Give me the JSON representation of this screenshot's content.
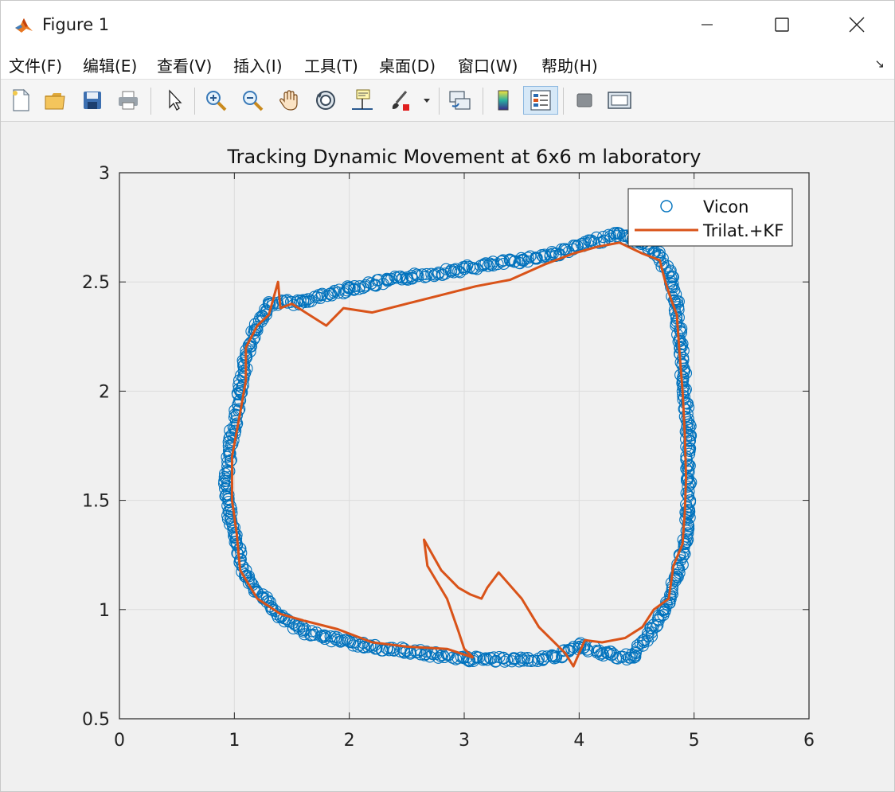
{
  "window": {
    "title": "Figure 1",
    "minimize_label": "—",
    "maximize_label": "☐",
    "close_label": "✕"
  },
  "menu": {
    "items": [
      "文件(F)",
      "编辑(E)",
      "查看(V)",
      "插入(I)",
      "工具(T)",
      "桌面(D)",
      "窗口(W)",
      "帮助(H)"
    ],
    "more_glyph": "↘"
  },
  "toolbar": {
    "icons": [
      "new-figure-icon",
      "open-file-icon",
      "save-icon",
      "print-icon",
      "select-arrow-icon",
      "zoom-in-icon",
      "zoom-out-icon",
      "pan-hand-icon",
      "rotate-3d-icon",
      "data-cursor-icon",
      "brush-icon",
      "link-plot-icon",
      "colorbar-icon",
      "legend-icon",
      "hide-plot-tools-icon",
      "show-plot-tools-icon"
    ]
  },
  "chart_data": {
    "type": "scatter",
    "title": "Tracking Dynamic Movement at 6x6 m laboratory",
    "xlabel": "",
    "ylabel": "",
    "xlim": [
      0,
      6
    ],
    "ylim": [
      0.5,
      3
    ],
    "xticks": [
      "0",
      "1",
      "2",
      "3",
      "4",
      "5",
      "6"
    ],
    "yticks": [
      "0.5",
      "1",
      "1.5",
      "2",
      "2.5",
      "3"
    ],
    "grid": true,
    "legend_position": "top-right",
    "series": [
      {
        "name": "Vicon",
        "style": "circle-markers",
        "color": "#0072bd",
        "points": [
          [
            1.3,
            2.4
          ],
          [
            1.6,
            2.41
          ],
          [
            2.0,
            2.47
          ],
          [
            2.5,
            2.52
          ],
          [
            3.0,
            2.56
          ],
          [
            3.5,
            2.6
          ],
          [
            3.8,
            2.63
          ],
          [
            4.1,
            2.68
          ],
          [
            4.35,
            2.72
          ],
          [
            4.55,
            2.68
          ],
          [
            4.7,
            2.62
          ],
          [
            4.8,
            2.52
          ],
          [
            4.85,
            2.4
          ],
          [
            4.88,
            2.2
          ],
          [
            4.92,
            2.0
          ],
          [
            4.95,
            1.8
          ],
          [
            4.95,
            1.6
          ],
          [
            4.95,
            1.45
          ],
          [
            4.92,
            1.3
          ],
          [
            4.85,
            1.15
          ],
          [
            4.75,
            1.0
          ],
          [
            4.6,
            0.88
          ],
          [
            4.45,
            0.78
          ],
          [
            4.2,
            0.8
          ],
          [
            4.0,
            0.84
          ],
          [
            3.8,
            0.78
          ],
          [
            3.5,
            0.77
          ],
          [
            3.2,
            0.77
          ],
          [
            2.9,
            0.78
          ],
          [
            2.5,
            0.81
          ],
          [
            2.2,
            0.83
          ],
          [
            1.9,
            0.86
          ],
          [
            1.6,
            0.9
          ],
          [
            1.4,
            0.97
          ],
          [
            1.25,
            1.05
          ],
          [
            1.1,
            1.15
          ],
          [
            1.02,
            1.3
          ],
          [
            0.95,
            1.45
          ],
          [
            0.93,
            1.6
          ],
          [
            0.98,
            1.8
          ],
          [
            1.05,
            2.0
          ],
          [
            1.1,
            2.15
          ],
          [
            1.18,
            2.28
          ],
          [
            1.3,
            2.4
          ]
        ]
      },
      {
        "name": "Trilat.+KF",
        "style": "line",
        "color": "#d95319",
        "points": [
          [
            3.08,
            0.78
          ],
          [
            2.85,
            0.82
          ],
          [
            2.5,
            0.83
          ],
          [
            2.2,
            0.85
          ],
          [
            1.9,
            0.91
          ],
          [
            1.6,
            0.95
          ],
          [
            1.4,
            0.98
          ],
          [
            1.2,
            1.05
          ],
          [
            1.05,
            1.18
          ],
          [
            1.02,
            1.35
          ],
          [
            0.98,
            1.5
          ],
          [
            0.98,
            1.7
          ],
          [
            1.05,
            1.9
          ],
          [
            1.1,
            2.05
          ],
          [
            1.1,
            2.2
          ],
          [
            1.2,
            2.3
          ],
          [
            1.3,
            2.35
          ],
          [
            1.38,
            2.5
          ],
          [
            1.4,
            2.38
          ],
          [
            1.5,
            2.4
          ],
          [
            1.65,
            2.35
          ],
          [
            1.8,
            2.3
          ],
          [
            1.95,
            2.38
          ],
          [
            2.2,
            2.36
          ],
          [
            2.5,
            2.4
          ],
          [
            2.8,
            2.44
          ],
          [
            3.1,
            2.48
          ],
          [
            3.4,
            2.51
          ],
          [
            3.7,
            2.58
          ],
          [
            3.95,
            2.63
          ],
          [
            4.15,
            2.66
          ],
          [
            4.35,
            2.68
          ],
          [
            4.55,
            2.63
          ],
          [
            4.7,
            2.6
          ],
          [
            4.75,
            2.5
          ],
          [
            4.8,
            2.42
          ],
          [
            4.85,
            2.35
          ],
          [
            4.87,
            2.2
          ],
          [
            4.9,
            2.0
          ],
          [
            4.92,
            1.8
          ],
          [
            4.93,
            1.6
          ],
          [
            4.92,
            1.45
          ],
          [
            4.9,
            1.3
          ],
          [
            4.82,
            1.2
          ],
          [
            4.78,
            1.05
          ],
          [
            4.65,
            1.0
          ],
          [
            4.55,
            0.92
          ],
          [
            4.4,
            0.87
          ],
          [
            4.2,
            0.85
          ],
          [
            4.05,
            0.86
          ],
          [
            3.95,
            0.74
          ],
          [
            3.88,
            0.8
          ],
          [
            3.65,
            0.92
          ],
          [
            3.5,
            1.05
          ],
          [
            3.3,
            1.17
          ],
          [
            3.2,
            1.1
          ],
          [
            3.15,
            1.05
          ],
          [
            3.05,
            1.07
          ],
          [
            2.95,
            1.1
          ],
          [
            2.8,
            1.18
          ],
          [
            2.65,
            1.32
          ],
          [
            2.68,
            1.2
          ],
          [
            2.85,
            1.05
          ],
          [
            2.95,
            0.9
          ],
          [
            3.0,
            0.82
          ],
          [
            3.08,
            0.78
          ]
        ]
      }
    ]
  }
}
